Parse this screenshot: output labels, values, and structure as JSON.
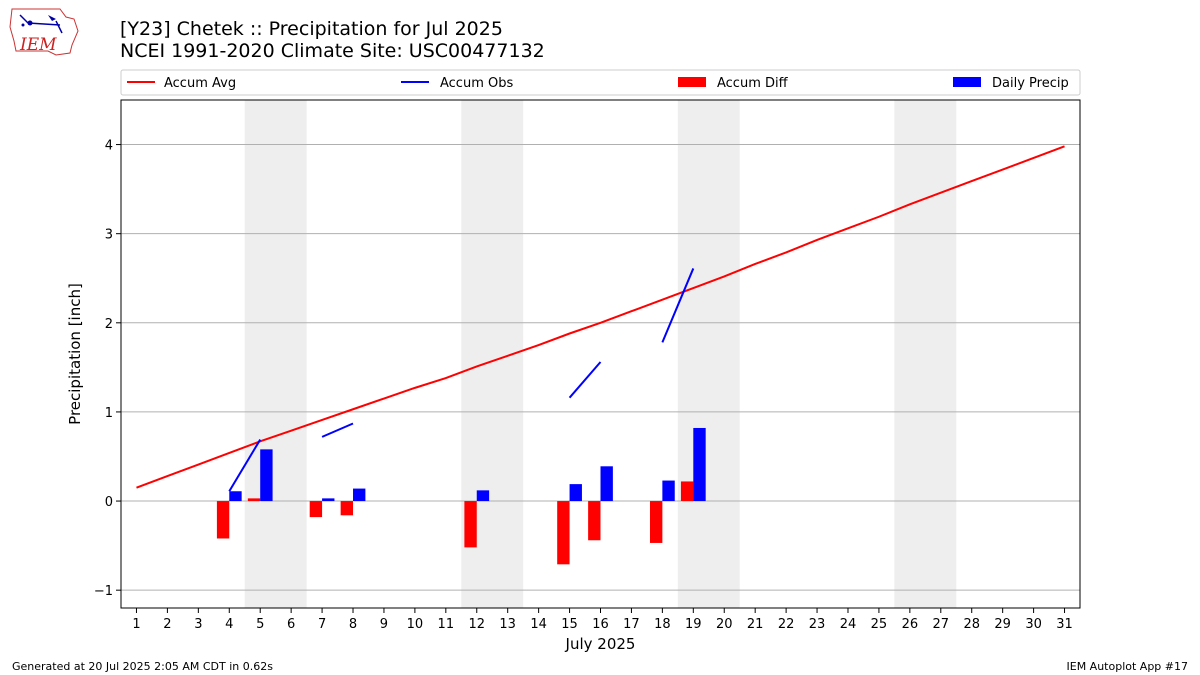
{
  "header": {
    "title_line1": "[Y23] Chetek :: Precipitation for Jul 2025",
    "title_line2": "NCEI 1991-2020 Climate Site: USC00477132",
    "logo_text": "IEM"
  },
  "footer": {
    "generated": "Generated at 20 Jul 2025 2:05 AM CDT in 0.62s",
    "app": "IEM Autoplot App #17"
  },
  "colors": {
    "accum_avg": "#ff0000",
    "accum_obs": "#0000ff",
    "accum_diff": "#ff0000",
    "daily_precip": "#0000ff",
    "weekend_shade": "#eeeeee",
    "grid": "#b0b0b0"
  },
  "chart_data": {
    "type": "bar",
    "xlabel": "July 2025",
    "ylabel": "Precipitation [inch]",
    "xlim": [
      0.5,
      31.5
    ],
    "ylim": [
      -1.2,
      4.5
    ],
    "yticks": [
      -1,
      0,
      1,
      2,
      3,
      4
    ],
    "days": [
      1,
      2,
      3,
      4,
      5,
      6,
      7,
      8,
      9,
      10,
      11,
      12,
      13,
      14,
      15,
      16,
      17,
      18,
      19,
      20,
      21,
      22,
      23,
      24,
      25,
      26,
      27,
      28,
      29,
      30,
      31
    ],
    "grid": "horizontal",
    "legend_position": "top",
    "legend": [
      "Accum Avg",
      "Accum Obs",
      "Accum Diff",
      "Daily Precip"
    ],
    "weekend_shading": [
      [
        5,
        6
      ],
      [
        12,
        13
      ],
      [
        19,
        20
      ],
      [
        26,
        27
      ]
    ],
    "series": [
      {
        "name": "Accum Avg",
        "kind": "line",
        "x": [
          1,
          2,
          3,
          4,
          5,
          6,
          7,
          8,
          9,
          10,
          11,
          12,
          13,
          14,
          15,
          16,
          17,
          18,
          19,
          20,
          21,
          22,
          23,
          24,
          25,
          26,
          27,
          28,
          29,
          30,
          31
        ],
        "values": [
          0.15,
          0.28,
          0.41,
          0.54,
          0.67,
          0.79,
          0.91,
          1.03,
          1.15,
          1.27,
          1.38,
          1.51,
          1.63,
          1.75,
          1.88,
          2.0,
          2.13,
          2.26,
          2.39,
          2.52,
          2.66,
          2.79,
          2.93,
          3.06,
          3.19,
          3.33,
          3.46,
          3.59,
          3.72,
          3.85,
          3.98
        ]
      },
      {
        "name": "Accum Obs",
        "kind": "line",
        "segments": [
          {
            "x": [
              4,
              5
            ],
            "values": [
              0.11,
              0.69
            ]
          },
          {
            "x": [
              7,
              8
            ],
            "values": [
              0.72,
              0.87
            ]
          },
          {
            "x": [
              15,
              16
            ],
            "values": [
              1.16,
              1.56
            ]
          },
          {
            "x": [
              18,
              19
            ],
            "values": [
              1.78,
              2.61
            ]
          }
        ]
      },
      {
        "name": "Accum Diff",
        "kind": "bar",
        "x": [
          4,
          5,
          7,
          8,
          12,
          15,
          16,
          18,
          19
        ],
        "values": [
          -0.42,
          0.03,
          -0.18,
          -0.16,
          -0.52,
          -0.71,
          -0.44,
          -0.47,
          0.22
        ]
      },
      {
        "name": "Daily Precip",
        "kind": "bar",
        "x": [
          4,
          5,
          7,
          8,
          12,
          15,
          16,
          18,
          19
        ],
        "values": [
          0.11,
          0.58,
          0.03,
          0.14,
          0.12,
          0.19,
          0.39,
          0.23,
          0.82
        ]
      }
    ]
  }
}
